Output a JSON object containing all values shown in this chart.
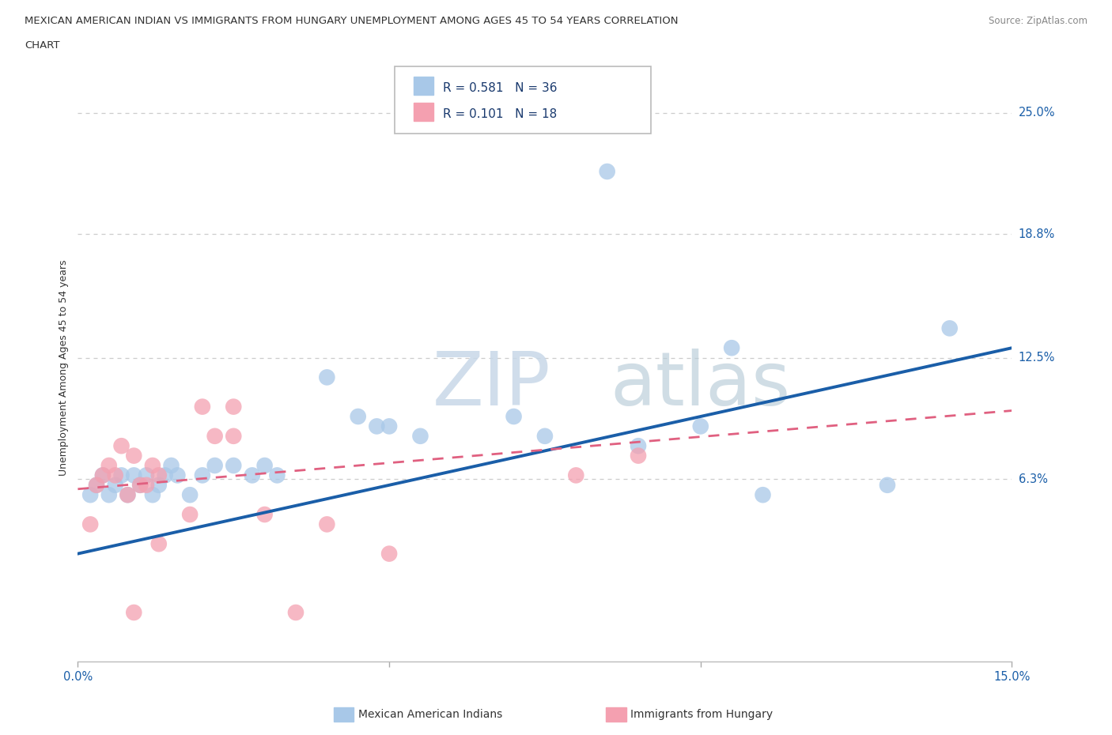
{
  "title_line1": "MEXICAN AMERICAN INDIAN VS IMMIGRANTS FROM HUNGARY UNEMPLOYMENT AMONG AGES 45 TO 54 YEARS CORRELATION",
  "title_line2": "CHART",
  "source": "Source: ZipAtlas.com",
  "ylabel": "Unemployment Among Ages 45 to 54 years",
  "xlim": [
    0.0,
    0.15
  ],
  "ylim": [
    -0.03,
    0.27
  ],
  "yticks": [
    0.063,
    0.125,
    0.188,
    0.25
  ],
  "ytick_labels": [
    "6.3%",
    "12.5%",
    "18.8%",
    "25.0%"
  ],
  "xticks": [
    0.0,
    0.05,
    0.1,
    0.15
  ],
  "xtick_labels": [
    "0.0%",
    "",
    "",
    "15.0%"
  ],
  "blue_R": "0.581",
  "blue_N": "36",
  "pink_R": "0.101",
  "pink_N": "18",
  "legend_label1": "Mexican American Indians",
  "legend_label2": "Immigrants from Hungary",
  "watermark_left": "ZIP",
  "watermark_right": "atlas",
  "blue_scatter_x": [
    0.002,
    0.003,
    0.004,
    0.005,
    0.006,
    0.007,
    0.008,
    0.009,
    0.01,
    0.011,
    0.012,
    0.013,
    0.014,
    0.015,
    0.016,
    0.018,
    0.02,
    0.022,
    0.025,
    0.028,
    0.03,
    0.032,
    0.04,
    0.045,
    0.048,
    0.05,
    0.055,
    0.07,
    0.075,
    0.085,
    0.09,
    0.1,
    0.105,
    0.11,
    0.13,
    0.14
  ],
  "blue_scatter_y": [
    0.055,
    0.06,
    0.065,
    0.055,
    0.06,
    0.065,
    0.055,
    0.065,
    0.06,
    0.065,
    0.055,
    0.06,
    0.065,
    0.07,
    0.065,
    0.055,
    0.065,
    0.07,
    0.07,
    0.065,
    0.07,
    0.065,
    0.115,
    0.095,
    0.09,
    0.09,
    0.085,
    0.095,
    0.085,
    0.22,
    0.08,
    0.09,
    0.13,
    0.055,
    0.06,
    0.14
  ],
  "pink_scatter_x": [
    0.002,
    0.003,
    0.004,
    0.005,
    0.006,
    0.007,
    0.008,
    0.009,
    0.01,
    0.011,
    0.012,
    0.013,
    0.02,
    0.025,
    0.04,
    0.05,
    0.08,
    0.09
  ],
  "pink_scatter_y": [
    0.04,
    0.06,
    0.065,
    0.07,
    0.065,
    0.08,
    0.055,
    0.075,
    0.06,
    0.06,
    0.07,
    0.065,
    0.1,
    0.1,
    0.04,
    0.025,
    0.065,
    0.075
  ],
  "pink_extra_x": [
    0.009,
    0.013,
    0.018,
    0.022,
    0.025,
    0.03,
    0.035
  ],
  "pink_extra_y": [
    -0.005,
    0.03,
    0.045,
    0.085,
    0.085,
    0.045,
    -0.005
  ],
  "blue_line_x": [
    0.0,
    0.15
  ],
  "blue_line_y": [
    0.025,
    0.13
  ],
  "pink_line_x": [
    0.0,
    0.15
  ],
  "pink_line_y": [
    0.058,
    0.098
  ],
  "blue_color": "#a8c8e8",
  "pink_color": "#f4a0b0",
  "blue_line_color": "#1a5ea8",
  "pink_line_color": "#e06080",
  "grid_color": "#cccccc",
  "background_color": "#ffffff",
  "title_color": "#333333",
  "axis_label_color": "#333333",
  "tick_label_color": "#1a5ea8",
  "source_color": "#888888"
}
